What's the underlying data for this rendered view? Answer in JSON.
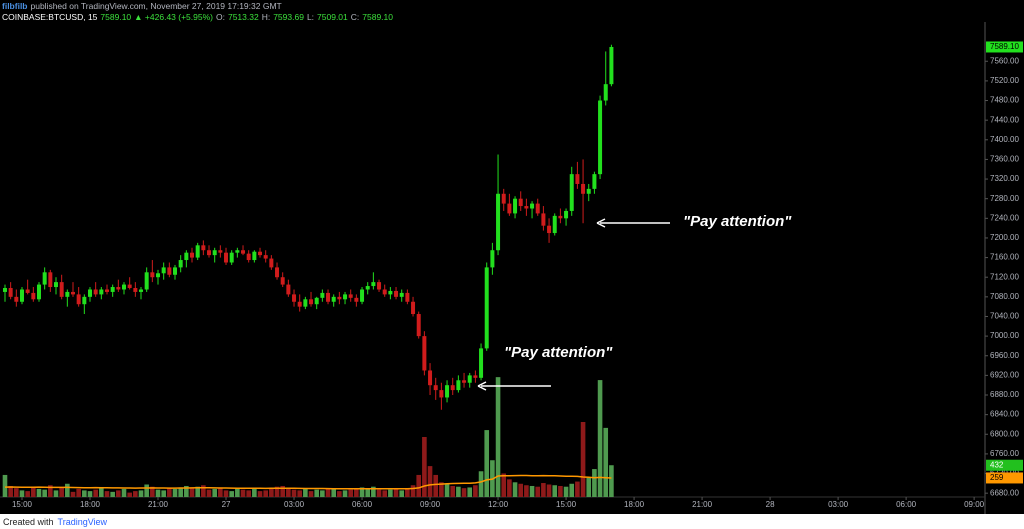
{
  "header": {
    "author": "filbfilb",
    "published": "published on TradingView.com, November 27, 2019 17:19:32 GMT",
    "symbol": "COINBASE:BTCUSD, 15",
    "price": "7589.10",
    "change": "▲ +426.43 (+5.95%)",
    "ohlc": [
      {
        "label": "O:",
        "value": "7513.32"
      },
      {
        "label": "H:",
        "value": "7593.69"
      },
      {
        "label": "L:",
        "value": "7509.01"
      },
      {
        "label": "C:",
        "value": "7589.10"
      }
    ]
  },
  "footer": {
    "created": "Created with",
    "brand": "TradingView"
  },
  "chart_data": {
    "type": "candlestick",
    "x": [
      14.25,
      14.5,
      14.75,
      15,
      15.25,
      15.5,
      15.75,
      16,
      16.25,
      16.5,
      16.75,
      17,
      17.25,
      17.5,
      17.75,
      18,
      18.25,
      18.5,
      18.75,
      19,
      19.25,
      19.5,
      19.75,
      20,
      20.25,
      20.5,
      20.75,
      21,
      21.25,
      21.5,
      21.75,
      22,
      22.25,
      22.5,
      22.75,
      23,
      23.25,
      23.5,
      23.75,
      24,
      24.25,
      24.5,
      24.75,
      25,
      25.25,
      25.5,
      25.75,
      26,
      26.25,
      26.5,
      26.75,
      27,
      27.25,
      27.5,
      27.75,
      28,
      28.25,
      28.5,
      28.75,
      29,
      29.25,
      29.5,
      29.75,
      30,
      30.25,
      30.5,
      30.75,
      31,
      31.25,
      31.5,
      31.75,
      32,
      32.25,
      32.5,
      32.75,
      33,
      33.25,
      33.5,
      33.75,
      34,
      34.25,
      34.5,
      34.75,
      35,
      35.25,
      35.5,
      35.75,
      36,
      36.25,
      36.5,
      36.75,
      37,
      37.25,
      37.5,
      37.75,
      38,
      38.25,
      38.5,
      38.75,
      39,
      39.25,
      39.5,
      39.75,
      40,
      40.25,
      40.5,
      40.75,
      41
    ],
    "open": [
      7090,
      7098,
      7080,
      7070,
      7095,
      7088,
      7075,
      7105,
      7130,
      7100,
      7110,
      7080,
      7090,
      7085,
      7065,
      7080,
      7095,
      7085,
      7095,
      7090,
      7100,
      7095,
      7105,
      7098,
      7090,
      7095,
      7130,
      7120,
      7128,
      7140,
      7125,
      7140,
      7155,
      7170,
      7160,
      7185,
      7175,
      7165,
      7175,
      7170,
      7150,
      7170,
      7175,
      7168,
      7155,
      7172,
      7165,
      7158,
      7140,
      7120,
      7105,
      7085,
      7070,
      7060,
      7075,
      7065,
      7078,
      7088,
      7070,
      7080,
      7075,
      7085,
      7078,
      7070,
      7095,
      7102,
      7110,
      7095,
      7085,
      7092,
      7080,
      7088,
      7070,
      7045,
      7000,
      6930,
      6900,
      6890,
      6875,
      6900,
      6890,
      6910,
      6905,
      6920,
      6915,
      6975,
      7140,
      7175,
      7290,
      7270,
      7250,
      7280,
      7265,
      7260,
      7270,
      7250,
      7225,
      7210,
      7245,
      7240,
      7255,
      7330,
      7310,
      7290,
      7300,
      7330,
      7480,
      7513.32
    ],
    "high": [
      7105,
      7110,
      7095,
      7100,
      7115,
      7100,
      7110,
      7140,
      7135,
      7120,
      7125,
      7095,
      7110,
      7100,
      7085,
      7100,
      7110,
      7100,
      7105,
      7105,
      7115,
      7110,
      7120,
      7110,
      7100,
      7140,
      7155,
      7135,
      7150,
      7150,
      7145,
      7165,
      7175,
      7180,
      7190,
      7195,
      7185,
      7180,
      7185,
      7180,
      7175,
      7180,
      7185,
      7175,
      7175,
      7180,
      7175,
      7165,
      7150,
      7130,
      7115,
      7095,
      7085,
      7080,
      7090,
      7080,
      7095,
      7095,
      7085,
      7090,
      7090,
      7095,
      7085,
      7100,
      7110,
      7130,
      7115,
      7105,
      7100,
      7100,
      7095,
      7095,
      7080,
      7050,
      7010,
      6945,
      6915,
      6905,
      6910,
      6915,
      6920,
      6925,
      6925,
      6930,
      6985,
      7150,
      7190,
      7370,
      7300,
      7290,
      7285,
      7295,
      7280,
      7275,
      7280,
      7265,
      7240,
      7250,
      7260,
      7260,
      7345,
      7355,
      7360,
      7310,
      7335,
      7490,
      7580,
      7593.69
    ],
    "low": [
      7070,
      7075,
      7060,
      7065,
      7085,
      7070,
      7070,
      7095,
      7090,
      7085,
      7075,
      7060,
      7080,
      7060,
      7045,
      7070,
      7080,
      7075,
      7085,
      7080,
      7090,
      7085,
      7095,
      7080,
      7075,
      7090,
      7110,
      7105,
      7115,
      7120,
      7115,
      7130,
      7140,
      7150,
      7155,
      7165,
      7160,
      7150,
      7160,
      7145,
      7145,
      7160,
      7165,
      7150,
      7150,
      7160,
      7150,
      7135,
      7115,
      7100,
      7080,
      7060,
      7050,
      7055,
      7060,
      7055,
      7070,
      7065,
      7060,
      7065,
      7065,
      7070,
      7060,
      7065,
      7085,
      7095,
      7090,
      7080,
      7075,
      7075,
      7070,
      7065,
      7040,
      6995,
      6920,
      6880,
      6870,
      6850,
      6865,
      6880,
      6885,
      6895,
      6895,
      6905,
      6910,
      6970,
      7125,
      7165,
      7255,
      7245,
      7240,
      7255,
      7245,
      7240,
      7245,
      7215,
      7190,
      7205,
      7230,
      7225,
      7245,
      7300,
      7230,
      7275,
      7290,
      7320,
      7470,
      7509.01
    ],
    "close": [
      7098,
      7080,
      7070,
      7095,
      7088,
      7075,
      7105,
      7130,
      7100,
      7110,
      7080,
      7090,
      7085,
      7065,
      7080,
      7095,
      7085,
      7095,
      7090,
      7100,
      7095,
      7105,
      7098,
      7090,
      7095,
      7130,
      7120,
      7128,
      7140,
      7125,
      7140,
      7155,
      7170,
      7160,
      7185,
      7175,
      7165,
      7175,
      7170,
      7150,
      7170,
      7175,
      7168,
      7155,
      7172,
      7165,
      7158,
      7140,
      7120,
      7105,
      7085,
      7070,
      7060,
      7075,
      7065,
      7078,
      7088,
      7070,
      7080,
      7075,
      7085,
      7078,
      7070,
      7095,
      7102,
      7110,
      7095,
      7085,
      7092,
      7080,
      7088,
      7070,
      7045,
      7000,
      6930,
      6900,
      6890,
      6875,
      6900,
      6890,
      6910,
      6905,
      6920,
      6915,
      6975,
      7140,
      7175,
      7290,
      7270,
      7250,
      7280,
      7265,
      7260,
      7270,
      7250,
      7225,
      7210,
      7245,
      7240,
      7255,
      7330,
      7310,
      7290,
      7300,
      7330,
      7480,
      7513.32,
      7589.1
    ],
    "up_color": "#22e01e",
    "down_color": "#d01c1c",
    "xlim": [
      14.03,
      57.48
    ],
    "xticks": [
      {
        "value": 15,
        "label": "15:00"
      },
      {
        "value": 18,
        "label": "18:00"
      },
      {
        "value": 21,
        "label": "21:00"
      },
      {
        "value": 24,
        "label": "27"
      },
      {
        "value": 27,
        "label": "03:00"
      },
      {
        "value": 30,
        "label": "06:00"
      },
      {
        "value": 33,
        "label": "09:00"
      },
      {
        "value": 36,
        "label": "12:00"
      },
      {
        "value": 39,
        "label": "15:00"
      },
      {
        "value": 42,
        "label": "18:00"
      },
      {
        "value": 45,
        "label": "21:00"
      },
      {
        "value": 48,
        "label": "28"
      },
      {
        "value": 51,
        "label": "03:00"
      },
      {
        "value": 54,
        "label": "06:00"
      },
      {
        "value": 57,
        "label": "09:00"
      }
    ],
    "ylim": [
      6662,
      7640
    ],
    "yticks": [
      {
        "value": 6680,
        "label": "6680.00"
      },
      {
        "value": 6720,
        "label": "6720.00"
      },
      {
        "value": 6760,
        "label": "6760.00"
      },
      {
        "value": 6800,
        "label": "6800.00"
      },
      {
        "value": 6840,
        "label": "6840.00"
      },
      {
        "value": 6880,
        "label": "6880.00"
      },
      {
        "value": 6920,
        "label": "6920.00"
      },
      {
        "value": 6960,
        "label": "6960.00"
      },
      {
        "value": 7000,
        "label": "7000.00"
      },
      {
        "value": 7040,
        "label": "7040.00"
      },
      {
        "value": 7080,
        "label": "7080.00"
      },
      {
        "value": 7120,
        "label": "7120.00"
      },
      {
        "value": 7160,
        "label": "7160.00"
      },
      {
        "value": 7200,
        "label": "7200.00"
      },
      {
        "value": 7240,
        "label": "7240.00"
      },
      {
        "value": 7280,
        "label": "7280.00"
      },
      {
        "value": 7320,
        "label": "7320.00"
      },
      {
        "value": 7360,
        "label": "7360.00"
      },
      {
        "value": 7400,
        "label": "7400.00"
      },
      {
        "value": 7440,
        "label": "7440.00"
      },
      {
        "value": 7480,
        "label": "7480.00"
      },
      {
        "value": 7520,
        "label": "7520.00"
      },
      {
        "value": 7560,
        "label": "7560.00"
      }
    ],
    "last_price": {
      "value": 7589.1,
      "label": "7589.10"
    },
    "volume": {
      "lim": [
        0,
        1700
      ],
      "up_color": "#4f9a4f",
      "down_color": "#8e1a1a",
      "values": [
        300,
        150,
        120,
        90,
        80,
        140,
        110,
        100,
        160,
        90,
        130,
        180,
        70,
        110,
        90,
        80,
        100,
        120,
        80,
        70,
        90,
        110,
        60,
        80,
        90,
        170,
        140,
        100,
        90,
        120,
        110,
        130,
        150,
        120,
        140,
        160,
        100,
        110,
        130,
        90,
        80,
        120,
        100,
        90,
        110,
        80,
        90,
        120,
        140,
        150,
        110,
        100,
        90,
        110,
        80,
        100,
        90,
        110,
        120,
        80,
        90,
        100,
        110,
        130,
        120,
        140,
        100,
        90,
        100,
        110,
        90,
        120,
        160,
        300,
        816,
        420,
        300,
        200,
        180,
        150,
        140,
        120,
        130,
        160,
        350,
        910,
        500,
        1630,
        320,
        240,
        200,
        180,
        160,
        150,
        140,
        190,
        170,
        160,
        150,
        140,
        180,
        210,
        1020,
        260,
        380,
        1590,
        940,
        432
      ],
      "last": 432,
      "last_color": "#22c01e",
      "ma": {
        "color": "#ff9800",
        "last": 259,
        "values": [
          135,
          136,
          134,
          133,
          132,
          133,
          134,
          132,
          131,
          130,
          130,
          131,
          129,
          128,
          127,
          127,
          128,
          126,
          125,
          124,
          124,
          123,
          122,
          121,
          122,
          123,
          124,
          123,
          122,
          121,
          121,
          122,
          123,
          124,
          125,
          126,
          125,
          124,
          123,
          122,
          121,
          120,
          120,
          119,
          118,
          118,
          117,
          118,
          119,
          120,
          119,
          118,
          117,
          116,
          116,
          115,
          115,
          114,
          113,
          113,
          112,
          112,
          111,
          111,
          112,
          113,
          113,
          112,
          112,
          111,
          111,
          112,
          116,
          124,
          150,
          165,
          172,
          176,
          180,
          183,
          185,
          186,
          188,
          192,
          205,
          232,
          244,
          285,
          288,
          290,
          291,
          292,
          292,
          290,
          289,
          291,
          290,
          288,
          285,
          283,
          282,
          280,
          272,
          268,
          262,
          266,
          262,
          259
        ]
      }
    },
    "annotations": [
      "\"Pay attention\"",
      "\"Pay attention\""
    ]
  }
}
